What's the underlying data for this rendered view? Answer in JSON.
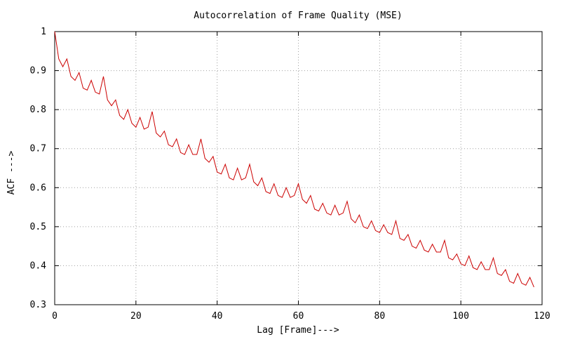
{
  "chart_data": {
    "type": "line",
    "title": "Autocorrelation of Frame Quality (MSE)",
    "xlabel": "Lag [Frame]--->",
    "ylabel": "ACF --->",
    "xlim": [
      0,
      120
    ],
    "ylim": [
      0.3,
      1
    ],
    "xticks": [
      0,
      20,
      40,
      60,
      80,
      100,
      120
    ],
    "xtick_labels": [
      "0",
      "20",
      "40",
      "60",
      "80",
      "100",
      "120"
    ],
    "yticks": [
      0.3,
      0.4,
      0.5,
      0.6,
      0.7,
      0.8,
      0.9,
      1
    ],
    "ytick_labels": [
      "0.3",
      "0.4",
      "0.5",
      "0.6",
      "0.7",
      "0.8",
      "0.9",
      "1"
    ],
    "grid": true,
    "colors": {
      "series": "#cc0000",
      "grid": "#a0a0a0"
    },
    "series": [
      {
        "x": [
          0,
          1,
          2,
          3,
          4,
          5,
          6,
          7,
          8,
          9,
          10,
          11,
          12,
          13,
          14,
          15,
          16,
          17,
          18,
          19,
          20,
          21,
          22,
          23,
          24,
          25,
          26,
          27,
          28,
          29,
          30,
          31,
          32,
          33,
          34,
          35,
          36,
          37,
          38,
          39,
          40,
          41,
          42,
          43,
          44,
          45,
          46,
          47,
          48,
          49,
          50,
          51,
          52,
          53,
          54,
          55,
          56,
          57,
          58,
          59,
          60,
          61,
          62,
          63,
          64,
          65,
          66,
          67,
          68,
          69,
          70,
          71,
          72,
          73,
          74,
          75,
          76,
          77,
          78,
          79,
          80,
          81,
          82,
          83,
          84,
          85,
          86,
          87,
          88,
          89,
          90,
          91,
          92,
          93,
          94,
          95,
          96,
          97,
          98,
          99,
          100,
          101,
          102,
          103,
          104,
          105,
          106,
          107,
          108,
          109,
          110,
          111,
          112,
          113,
          114,
          115,
          116,
          117,
          118
        ],
        "values": [
          1.0,
          0.93,
          0.91,
          0.93,
          0.885,
          0.875,
          0.895,
          0.855,
          0.85,
          0.875,
          0.845,
          0.84,
          0.885,
          0.825,
          0.81,
          0.825,
          0.785,
          0.775,
          0.8,
          0.765,
          0.755,
          0.78,
          0.75,
          0.755,
          0.795,
          0.74,
          0.73,
          0.745,
          0.71,
          0.705,
          0.725,
          0.69,
          0.685,
          0.71,
          0.685,
          0.685,
          0.725,
          0.675,
          0.665,
          0.68,
          0.64,
          0.635,
          0.66,
          0.625,
          0.62,
          0.65,
          0.62,
          0.625,
          0.66,
          0.615,
          0.605,
          0.625,
          0.59,
          0.585,
          0.61,
          0.58,
          0.575,
          0.6,
          0.575,
          0.58,
          0.61,
          0.57,
          0.56,
          0.58,
          0.545,
          0.54,
          0.56,
          0.535,
          0.53,
          0.555,
          0.53,
          0.535,
          0.565,
          0.52,
          0.51,
          0.53,
          0.5,
          0.495,
          0.515,
          0.49,
          0.485,
          0.505,
          0.485,
          0.48,
          0.515,
          0.47,
          0.465,
          0.48,
          0.45,
          0.445,
          0.465,
          0.44,
          0.435,
          0.455,
          0.435,
          0.435,
          0.465,
          0.42,
          0.415,
          0.43,
          0.405,
          0.4,
          0.425,
          0.395,
          0.39,
          0.41,
          0.39,
          0.39,
          0.42,
          0.38,
          0.375,
          0.39,
          0.36,
          0.355,
          0.38,
          0.355,
          0.35,
          0.37,
          0.345
        ]
      }
    ]
  }
}
